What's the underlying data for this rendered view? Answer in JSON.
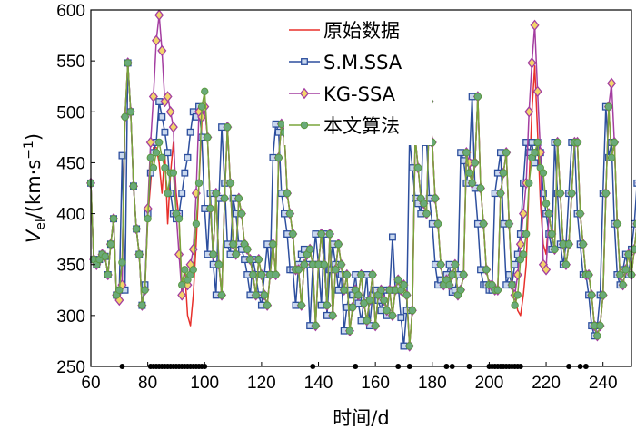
{
  "chart_data": {
    "type": "line",
    "title": "",
    "xlabel": "时间/d",
    "ylabel": {
      "base": "V",
      "sub": "el",
      "unit": "/(km·s",
      "sup": "−1",
      "close": ")"
    },
    "xlim": [
      60,
      250
    ],
    "ylim": [
      250,
      600
    ],
    "xticks": [
      60,
      80,
      100,
      120,
      140,
      160,
      180,
      200,
      220,
      240
    ],
    "yticks": [
      250,
      300,
      350,
      400,
      450,
      500,
      550,
      600
    ],
    "grid": false,
    "legend": "top-center",
    "x_start": 60,
    "x_step": 1,
    "markers": {
      "x": [
        71,
        81,
        82,
        83,
        84,
        85,
        86,
        87,
        88,
        89,
        90,
        91,
        92,
        93,
        94,
        95,
        96,
        97,
        98,
        99,
        100,
        138,
        153,
        168,
        172,
        185,
        187,
        193,
        200,
        201,
        202,
        203,
        204,
        205,
        206,
        207,
        208,
        209,
        210,
        211,
        228,
        232,
        234
      ],
      "y": 250,
      "color": "#000000"
    },
    "series": [
      {
        "name": "原始数据",
        "color": "#e8302b",
        "marker": "none",
        "values": [
          430,
          355,
          350,
          355,
          360,
          358,
          340,
          370,
          395,
          320,
          325,
          352,
          495,
          548,
          500,
          427,
          385,
          360,
          310,
          325,
          395,
          430,
          465,
          465,
          450,
          420,
          460,
          390,
          440,
          470,
          420,
          395,
          320,
          345,
          300,
          290,
          320,
          370,
          430,
          490,
          505,
          475,
          405,
          360,
          420,
          350,
          320,
          415,
          485,
          430,
          370,
          360,
          415,
          400,
          370,
          365,
          355,
          340,
          320,
          355,
          340,
          320,
          310,
          340,
          370,
          340,
          455,
          488,
          480,
          420,
          400,
          380,
          345,
          345,
          310,
          350,
          360,
          365,
          350,
          290,
          350,
          380,
          350,
          310,
          380,
          300,
          345,
          370,
          350,
          325,
          340,
          285,
          308,
          325,
          320,
          340,
          312,
          295,
          315,
          340,
          290,
          320,
          325,
          315,
          305,
          325,
          300,
          325,
          335,
          325,
          330,
          320,
          270,
          305,
          475,
          445,
          415,
          410,
          400,
          510,
          470,
          415,
          390,
          350,
          330,
          335,
          330,
          340,
          350,
          320,
          325,
          340,
          460,
          450,
          430,
          450,
          515,
          425,
          390,
          345,
          330,
          330,
          325,
          325,
          420,
          440,
          460,
          390,
          330,
          320,
          305,
          300,
          320,
          350,
          430,
          500,
          545,
          480,
          410,
          370,
          360,
          400,
          380,
          365,
          470,
          420,
          370,
          350,
          370,
          420,
          470,
          470,
          400,
          370,
          340,
          340,
          320,
          290,
          280,
          290,
          320,
          420,
          505,
          455,
          470,
          390,
          340,
          330,
          345,
          360,
          340,
          365,
          390,
          430,
          440,
          355,
          340,
          355,
          380
        ]
      },
      {
        "name": "S.M.SSA",
        "color": "#2d4f9e",
        "marker": "square",
        "values": [
          430,
          355,
          350,
          355,
          360,
          358,
          340,
          370,
          395,
          320,
          325,
          457,
          325,
          548,
          500,
          427,
          385,
          360,
          310,
          330,
          400,
          440,
          460,
          470,
          510,
          495,
          480,
          460,
          420,
          400,
          395,
          400,
          420,
          440,
          455,
          480,
          500,
          495,
          505,
          475,
          405,
          360,
          420,
          350,
          320,
          415,
          485,
          430,
          370,
          360,
          415,
          400,
          370,
          365,
          355,
          340,
          320,
          355,
          340,
          320,
          310,
          340,
          370,
          340,
          455,
          488,
          480,
          420,
          400,
          380,
          345,
          345,
          310,
          350,
          360,
          365,
          350,
          290,
          350,
          380,
          350,
          310,
          380,
          300,
          345,
          370,
          350,
          325,
          340,
          285,
          308,
          325,
          320,
          340,
          312,
          295,
          315,
          340,
          290,
          320,
          325,
          315,
          305,
          325,
          300,
          325,
          377,
          325,
          330,
          298,
          270,
          305,
          475,
          445,
          415,
          410,
          400,
          510,
          470,
          415,
          390,
          350,
          330,
          335,
          330,
          340,
          350,
          323,
          325,
          340,
          460,
          452,
          430,
          450,
          515,
          425,
          390,
          345,
          330,
          330,
          325,
          325,
          420,
          440,
          460,
          390,
          330,
          340,
          330,
          350,
          360,
          380,
          430,
          470,
          460,
          470,
          450,
          470,
          460,
          420,
          400,
          380,
          365,
          470,
          420,
          370,
          350,
          370,
          420,
          470,
          470,
          400,
          370,
          340,
          340,
          320,
          290,
          280,
          290,
          320,
          420,
          505,
          455,
          470,
          390,
          340,
          330,
          345,
          360,
          340,
          365,
          390,
          430,
          440,
          355,
          340,
          355,
          380
        ]
      },
      {
        "name": "KG-SSA",
        "color": "#a43ea1",
        "marker": "diamond",
        "values": [
          430,
          355,
          350,
          355,
          360,
          358,
          340,
          370,
          395,
          320,
          315,
          330,
          495,
          548,
          500,
          427,
          385,
          360,
          310,
          325,
          405,
          470,
          515,
          570,
          595,
          560,
          510,
          515,
          500,
          485,
          400,
          360,
          320,
          335,
          330,
          350,
          365,
          420,
          500,
          495,
          505,
          475,
          405,
          360,
          420,
          350,
          320,
          415,
          485,
          430,
          370,
          360,
          415,
          400,
          370,
          365,
          355,
          340,
          320,
          355,
          340,
          320,
          310,
          340,
          370,
          340,
          455,
          488,
          480,
          420,
          400,
          380,
          345,
          345,
          310,
          350,
          360,
          365,
          350,
          290,
          350,
          380,
          350,
          310,
          380,
          300,
          345,
          370,
          350,
          325,
          340,
          285,
          308,
          325,
          320,
          340,
          312,
          295,
          315,
          340,
          290,
          320,
          325,
          315,
          305,
          325,
          300,
          325,
          335,
          325,
          330,
          320,
          270,
          305,
          475,
          445,
          415,
          410,
          400,
          510,
          470,
          415,
          390,
          350,
          330,
          335,
          330,
          340,
          350,
          320,
          325,
          340,
          460,
          450,
          430,
          450,
          515,
          425,
          390,
          345,
          330,
          330,
          325,
          325,
          420,
          440,
          460,
          390,
          330,
          320,
          340,
          370,
          400,
          430,
          500,
          548,
          585,
          520,
          460,
          350,
          345,
          400,
          380,
          365,
          470,
          420,
          370,
          350,
          370,
          420,
          470,
          470,
          400,
          370,
          340,
          340,
          320,
          290,
          280,
          290,
          320,
          420,
          505,
          528,
          470,
          390,
          340,
          330,
          345,
          360,
          340,
          365,
          390,
          430,
          440,
          355,
          340,
          355,
          380
        ]
      },
      {
        "name": "本文算法",
        "color": "#7aa53c",
        "marker": "circle",
        "values": [
          430,
          355,
          350,
          355,
          360,
          358,
          340,
          370,
          395,
          320,
          325,
          352,
          495,
          548,
          500,
          427,
          385,
          360,
          310,
          325,
          395,
          455,
          445,
          460,
          470,
          455,
          445,
          420,
          440,
          440,
          400,
          395,
          330,
          345,
          335,
          340,
          345,
          390,
          430,
          505,
          520,
          475,
          405,
          360,
          420,
          350,
          320,
          415,
          485,
          430,
          370,
          360,
          415,
          400,
          370,
          365,
          355,
          340,
          320,
          355,
          340,
          320,
          310,
          340,
          370,
          340,
          455,
          488,
          480,
          420,
          400,
          380,
          345,
          345,
          310,
          350,
          360,
          365,
          350,
          290,
          350,
          380,
          350,
          310,
          380,
          300,
          345,
          370,
          350,
          325,
          340,
          285,
          308,
          325,
          320,
          340,
          312,
          295,
          315,
          340,
          290,
          320,
          325,
          315,
          305,
          325,
          300,
          325,
          335,
          325,
          330,
          320,
          270,
          305,
          475,
          445,
          415,
          410,
          400,
          510,
          470,
          415,
          390,
          350,
          330,
          335,
          330,
          340,
          350,
          320,
          325,
          340,
          460,
          440,
          430,
          450,
          515,
          425,
          390,
          345,
          330,
          330,
          325,
          325,
          420,
          440,
          460,
          390,
          330,
          310,
          320,
          355,
          360,
          380,
          430,
          455,
          460,
          470,
          445,
          440,
          410,
          400,
          380,
          365,
          470,
          420,
          370,
          350,
          370,
          420,
          470,
          470,
          400,
          370,
          340,
          340,
          320,
          290,
          280,
          290,
          320,
          420,
          505,
          455,
          470,
          390,
          340,
          330,
          345,
          360,
          340,
          365,
          390,
          430,
          440,
          355,
          340,
          355,
          380
        ]
      }
    ]
  }
}
